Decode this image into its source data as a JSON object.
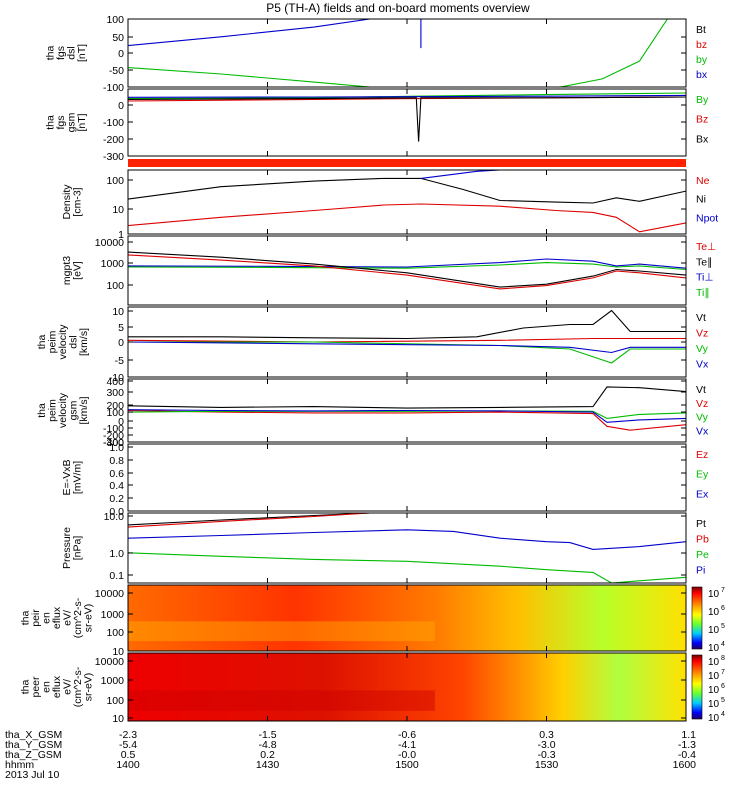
{
  "chart_data": {
    "type": "line",
    "title": "P5 (TH-A) fields and on-board moments overview",
    "time": {
      "labels": [
        "1400",
        "1430",
        "1500",
        "1530",
        "1600"
      ],
      "minutes": [
        0,
        30,
        60,
        90,
        120
      ],
      "xlim_minutes": [
        0,
        120
      ]
    },
    "panels": [
      {
        "id": "fgs-dsl",
        "ylabel_lines": [
          "tha",
          "fgs",
          "dsl",
          "[nT]"
        ],
        "yticks": [
          "100",
          "50",
          "0",
          "-50",
          "-100"
        ],
        "ylim": [
          -100,
          110
        ],
        "legend": [
          {
            "label": "Bt",
            "color": "#000000"
          },
          {
            "label": "bz",
            "color": "#dd0000"
          },
          {
            "label": "by",
            "color": "#00bb00"
          },
          {
            "label": "bx",
            "color": "#0000cc"
          }
        ],
        "series": [
          {
            "color": "#0000cc",
            "x": [
              0,
              20,
              40,
              52
            ],
            "y": [
              28,
              55,
              85,
              110
            ]
          },
          {
            "color": "#00bb00",
            "x": [
              0,
              20,
              40,
              52
            ],
            "y": [
              -40,
              -60,
              -85,
              -100
            ]
          },
          {
            "color": "#00bb00",
            "x": [
              93,
              102,
              110,
              116
            ],
            "y": [
              -100,
              -75,
              -20,
              110
            ]
          },
          {
            "color": "#0000cc",
            "x": [
              63,
              63
            ],
            "y": [
              110,
              20
            ]
          }
        ]
      },
      {
        "id": "fgs-gsm",
        "ylabel_lines": [
          "tha",
          "fgs",
          "gsm",
          "[nT]"
        ],
        "yticks": [
          "0",
          "-100",
          "-200",
          "-300"
        ],
        "ylim": [
          -370,
          50
        ],
        "legend": [
          {
            "label": "By",
            "color": "#00bb00"
          },
          {
            "label": "Bz",
            "color": "#dd0000"
          },
          {
            "label": "Bx",
            "color": "#000000"
          }
        ],
        "series": [
          {
            "color": "#00bb00",
            "x": [
              0,
              40,
              62,
              90,
              120
            ],
            "y": [
              -10,
              -5,
              5,
              15,
              25
            ]
          },
          {
            "color": "#0000cc",
            "x": [
              0,
              40,
              62,
              90,
              120
            ],
            "y": [
              -2,
              0,
              2,
              5,
              10
            ]
          },
          {
            "color": "#dd0000",
            "x": [
              0,
              40,
              62,
              90,
              120
            ],
            "y": [
              -25,
              -15,
              -10,
              -5,
              0
            ]
          },
          {
            "color": "#000000",
            "x": [
              0,
              40,
              62,
              62.5,
              63,
              90,
              120
            ],
            "y": [
              -15,
              -10,
              -5,
              -280,
              -5,
              -5,
              0
            ]
          }
        ]
      },
      {
        "id": "density",
        "ylabel_lines": [
          "Density",
          "[cm-3]"
        ],
        "yticks": [
          "100",
          "10",
          "1"
        ],
        "ytick_values": [
          100,
          10,
          1
        ],
        "ylim": [
          1,
          200
        ],
        "scale": "log",
        "legend": [
          {
            "label": "Ne",
            "color": "#dd0000"
          },
          {
            "label": "Ni",
            "color": "#000000"
          },
          {
            "label": "Npot",
            "color": "#0000cc"
          }
        ],
        "series": [
          {
            "color": "#000000",
            "x": [
              0,
              20,
              40,
              55,
              63,
              72,
              80,
              92,
              100,
              105,
              110,
              120
            ],
            "y": [
              18,
              50,
              80,
              100,
              100,
              40,
              16,
              14,
              13,
              20,
              15,
              35
            ]
          },
          {
            "color": "#dd0000",
            "x": [
              0,
              20,
              40,
              55,
              63,
              80,
              92,
              100,
              105,
              110,
              120
            ],
            "y": [
              2,
              4,
              7,
              11,
              12,
              10,
              7,
              6,
              4,
              1.2,
              2.5
            ]
          },
          {
            "color": "#0000cc",
            "x": [
              63,
              70,
              75,
              80
            ],
            "y": [
              100,
              140,
              180,
              200
            ]
          }
        ]
      },
      {
        "id": "temperature",
        "ylabel_lines": [
          "mgpt3",
          "[eV]"
        ],
        "yticks": [
          "10000",
          "1000",
          "100"
        ],
        "ytick_values": [
          10000,
          1000,
          100
        ],
        "ylim": [
          10,
          10000
        ],
        "scale": "log",
        "legend": [
          {
            "label": "Te⊥",
            "color": "#dd0000"
          },
          {
            "label": "Te∥",
            "color": "#000000"
          },
          {
            "label": "Ti⊥",
            "color": "#0000cc"
          },
          {
            "label": "Ti∥",
            "color": "#00bb00"
          }
        ],
        "series": [
          {
            "color": "#0000cc",
            "x": [
              0,
              30,
              60,
              80,
              90,
              100,
              105,
              110,
              120
            ],
            "y": [
              500,
              480,
              450,
              700,
              1000,
              800,
              500,
              600,
              400
            ]
          },
          {
            "color": "#00bb00",
            "x": [
              0,
              30,
              60,
              80,
              90,
              100,
              105,
              110,
              120
            ],
            "y": [
              450,
              430,
              400,
              550,
              700,
              600,
              450,
              500,
              350
            ]
          },
          {
            "color": "#000000",
            "x": [
              0,
              20,
              40,
              60,
              80,
              90,
              100,
              105,
              110,
              120
            ],
            "y": [
              2000,
              1200,
              600,
              250,
              60,
              80,
              180,
              350,
              300,
              200
            ]
          },
          {
            "color": "#dd0000",
            "x": [
              0,
              20,
              40,
              60,
              80,
              90,
              100,
              105,
              110,
              120
            ],
            "y": [
              1500,
              900,
              500,
              200,
              50,
              70,
              150,
              300,
              250,
              150
            ]
          }
        ]
      },
      {
        "id": "velocity-dsl",
        "ylabel_lines": [
          "tha",
          "peim",
          "velocity",
          "dsl",
          "[km/s]"
        ],
        "yticks": [
          "10",
          "5",
          "0",
          "-5",
          "-10"
        ],
        "ylim": [
          -10,
          10
        ],
        "legend": [
          {
            "label": "Vt",
            "color": "#000000"
          },
          {
            "label": "Vz",
            "color": "#dd0000"
          },
          {
            "label": "Vy",
            "color": "#00bb00"
          },
          {
            "label": "Vx",
            "color": "#0000cc"
          }
        ],
        "series": [
          {
            "color": "#000000",
            "x": [
              0,
              20,
              40,
              60,
              75,
              85,
              95,
              100,
              104,
              108,
              120
            ],
            "y": [
              1.5,
              1.5,
              1.2,
              1,
              1.5,
              4,
              5,
              5,
              9,
              3,
              3
            ]
          },
          {
            "color": "#dd0000",
            "x": [
              0,
              40,
              80,
              100,
              120
            ],
            "y": [
              0.5,
              0,
              0.5,
              1,
              1
            ]
          },
          {
            "color": "#00bb00",
            "x": [
              0,
              40,
              80,
              95,
              104,
              108,
              120
            ],
            "y": [
              0,
              0,
              -1,
              -2,
              -6,
              -2,
              -2
            ]
          },
          {
            "color": "#0000cc",
            "x": [
              0,
              40,
              80,
              95,
              104,
              108,
              120
            ],
            "y": [
              0,
              -0.5,
              -1,
              -1.5,
              -3,
              -1.5,
              -1.5
            ]
          }
        ]
      },
      {
        "id": "velocity-gsm",
        "ylabel_lines": [
          "tha",
          "peim",
          "velocity",
          "gsm",
          "[km/s]"
        ],
        "yticks": [
          "400",
          "300",
          "200",
          "100",
          "0",
          "-100",
          "-200",
          "-300",
          "-400"
        ],
        "ylim": [
          -400,
          400
        ],
        "legend": [
          {
            "label": "Vt",
            "color": "#000000"
          },
          {
            "label": "Vz",
            "color": "#dd0000"
          },
          {
            "label": "Vy",
            "color": "#00bb00"
          },
          {
            "label": "Vx",
            "color": "#0000cc"
          }
        ],
        "series": [
          {
            "color": "#000000",
            "x": [
              0,
              20,
              40,
              60,
              80,
              100,
              103,
              110,
              120
            ],
            "y": [
              60,
              40,
              50,
              30,
              40,
              50,
              300,
              290,
              240
            ]
          },
          {
            "color": "#dd0000",
            "x": [
              0,
              20,
              40,
              60,
              80,
              100,
              103,
              108,
              120
            ],
            "y": [
              0,
              -20,
              -30,
              -30,
              -20,
              -40,
              -200,
              -250,
              -180
            ]
          },
          {
            "color": "#00bb00",
            "x": [
              0,
              20,
              40,
              60,
              80,
              100,
              103,
              110,
              120
            ],
            "y": [
              -20,
              -10,
              -10,
              -10,
              -5,
              -10,
              -100,
              -50,
              -30
            ]
          },
          {
            "color": "#0000cc",
            "x": [
              0,
              20,
              40,
              60,
              80,
              100,
              103,
              110,
              120
            ],
            "y": [
              10,
              0,
              -5,
              0,
              -5,
              -20,
              -150,
              -120,
              -100
            ]
          }
        ]
      },
      {
        "id": "efield",
        "ylabel_lines": [
          "E=-VxB",
          "[mV/m]"
        ],
        "yticks": [
          "1.0",
          "0.8",
          "0.6",
          "0.4",
          "0.2",
          "0.0"
        ],
        "ylim": [
          0,
          1
        ],
        "legend": [
          {
            "label": "Ez",
            "color": "#dd0000"
          },
          {
            "label": "Ey",
            "color": "#00bb00"
          },
          {
            "label": "Ex",
            "color": "#0000cc"
          }
        ],
        "series": []
      },
      {
        "id": "pressure",
        "ylabel_lines": [
          "Pressure",
          "[nPa]"
        ],
        "yticks": [
          "10.0",
          "1.0",
          "0.1"
        ],
        "ytick_values": [
          10,
          1,
          0.1
        ],
        "ylim": [
          0.05,
          16
        ],
        "scale": "log",
        "legend": [
          {
            "label": "Pt",
            "color": "#000000"
          },
          {
            "label": "Pb",
            "color": "#dd0000"
          },
          {
            "label": "Pe",
            "color": "#00bb00"
          },
          {
            "label": "Pi",
            "color": "#0000cc"
          }
        ],
        "series": [
          {
            "color": "#000000",
            "x": [
              0,
              20,
              40,
              52
            ],
            "y": [
              6,
              9,
              13,
              16
            ]
          },
          {
            "color": "#dd0000",
            "x": [
              0,
              20,
              40,
              52
            ],
            "y": [
              5,
              8,
              12,
              16
            ]
          },
          {
            "color": "#0000cc",
            "x": [
              0,
              20,
              40,
              60,
              70,
              80,
              90,
              95,
              100,
              110,
              120
            ],
            "y": [
              2,
              2.5,
              3.2,
              4,
              3.5,
              2,
              1.5,
              1.4,
              0.8,
              1.0,
              1.5
            ]
          },
          {
            "color": "#00bb00",
            "x": [
              0,
              20,
              40,
              60,
              80,
              90,
              100,
              104,
              110,
              120
            ],
            "y": [
              0.6,
              0.45,
              0.35,
              0.3,
              0.2,
              0.15,
              0.12,
              0.05,
              0.06,
              0.08
            ]
          }
        ]
      },
      {
        "id": "spec-ion",
        "type": "heatmap",
        "ylabel_lines": [
          "tha",
          "peir",
          "en",
          "eflux",
          "eV/",
          "(cm^2-s-",
          "sr-eV)"
        ],
        "yticks": [
          "10000",
          "1000",
          "100",
          "10"
        ],
        "colorbar_ticks": [
          "10",
          "10",
          "10",
          "10"
        ],
        "colorbar_exps": [
          "7",
          "6",
          "5",
          "4"
        ]
      },
      {
        "id": "spec-electron",
        "type": "heatmap",
        "ylabel_lines": [
          "tha",
          "peer",
          "en",
          "eflux",
          "eV/",
          "(cm^2-s-",
          "sr-eV)"
        ],
        "yticks": [
          "10000",
          "1000",
          "100",
          "10"
        ],
        "colorbar_ticks": [
          "10",
          "10",
          "10",
          "10",
          "10"
        ],
        "colorbar_exps": [
          "8",
          "7",
          "6",
          "5",
          "4"
        ]
      }
    ],
    "ephemeris": {
      "rows": [
        {
          "label": "tha_X_GSM",
          "values": [
            "-2.3",
            "-1.5",
            "-0.6",
            "0.3",
            "1.1"
          ]
        },
        {
          "label": "tha_Y_GSM",
          "values": [
            "-5.4",
            "-4.8",
            "-4.1",
            "-3.0",
            "-1.3"
          ]
        },
        {
          "label": "tha_Z_GSM",
          "values": [
            "0.5",
            "0.2",
            "-0.0",
            "-0.3",
            "-0.4"
          ]
        },
        {
          "label": "hhmm",
          "values": [
            "1400",
            "1430",
            "1500",
            "1530",
            "1600"
          ]
        }
      ],
      "date": "2013 Jul 10"
    }
  }
}
